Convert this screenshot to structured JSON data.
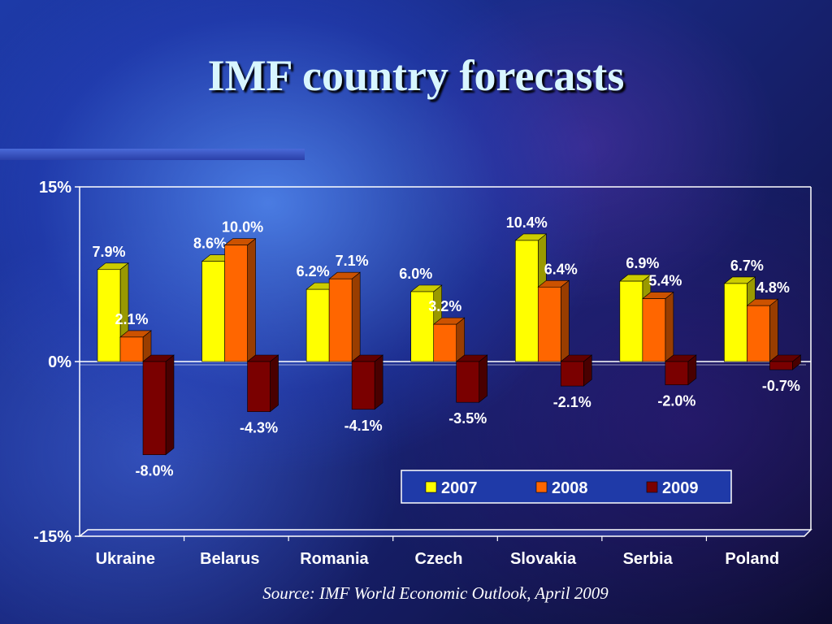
{
  "slide": {
    "title": "IMF country forecasts",
    "source": "Source: IMF World Economic Outlook, April 2009"
  },
  "chart_data": {
    "type": "bar",
    "categories": [
      "Ukraine",
      "Belarus",
      "Romania",
      "Czech",
      "Slovakia",
      "Serbia",
      "Poland"
    ],
    "series": [
      {
        "name": "2007",
        "values": [
          7.9,
          8.6,
          6.2,
          6.0,
          10.4,
          6.9,
          6.7
        ],
        "color": "#ffff00"
      },
      {
        "name": "2008",
        "values": [
          2.1,
          10.0,
          7.1,
          3.2,
          6.4,
          5.4,
          4.8
        ],
        "color": "#ff6600"
      },
      {
        "name": "2009",
        "values": [
          -8.0,
          -4.3,
          -4.1,
          -3.5,
          -2.1,
          -2.0,
          -0.7
        ],
        "color": "#7a0000"
      }
    ],
    "ylim": [
      -15,
      15
    ],
    "yticks": [
      "-15%",
      "0%",
      "15%"
    ],
    "data_labels": [
      [
        "7.9%",
        "2.1%",
        "-8.0%"
      ],
      [
        "8.6%",
        "10.0%",
        "-4.3%"
      ],
      [
        "6.2%",
        "7.1%",
        "-4.1%"
      ],
      [
        "6.0%",
        "3.2%",
        "-3.5%"
      ],
      [
        "10.4%",
        "6.4%",
        "-2.1%"
      ],
      [
        "6.9%",
        "5.4%",
        "-2.0%"
      ],
      [
        "6.7%",
        "4.8%",
        "-0.7%"
      ]
    ],
    "legend_position": "bottom-right",
    "grid": false,
    "three_d": true
  }
}
